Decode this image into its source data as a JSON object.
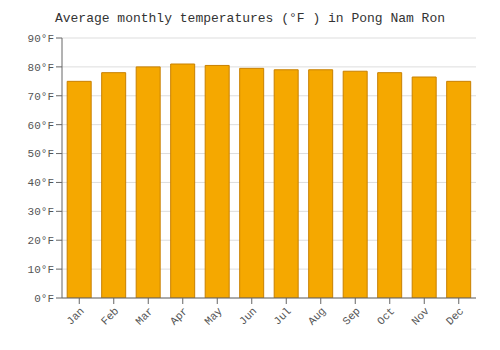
{
  "chart_data": {
    "type": "bar",
    "title": "Average monthly temperatures (°F ) in Pong Nam Ron",
    "categories": [
      "Jan",
      "Feb",
      "Mar",
      "Apr",
      "May",
      "Jun",
      "Jul",
      "Aug",
      "Sep",
      "Oct",
      "Nov",
      "Dec"
    ],
    "values": [
      75,
      78,
      80,
      81,
      80.5,
      79.5,
      79,
      79,
      78.5,
      78,
      76.5,
      75
    ],
    "color": "#F5A800",
    "ylim": [
      0,
      90
    ],
    "yticks": [
      {
        "value": 0,
        "label": "0°F"
      },
      {
        "value": 10,
        "label": "10°F"
      },
      {
        "value": 20,
        "label": "20°F"
      },
      {
        "value": 30,
        "label": "30°F"
      },
      {
        "value": 40,
        "label": "40°F"
      },
      {
        "value": 50,
        "label": "50°F"
      },
      {
        "value": 60,
        "label": "60°F"
      },
      {
        "value": 70,
        "label": "70°F"
      },
      {
        "value": 80,
        "label": "80°F"
      },
      {
        "value": 90,
        "label": "90°F"
      }
    ],
    "grid": true
  }
}
